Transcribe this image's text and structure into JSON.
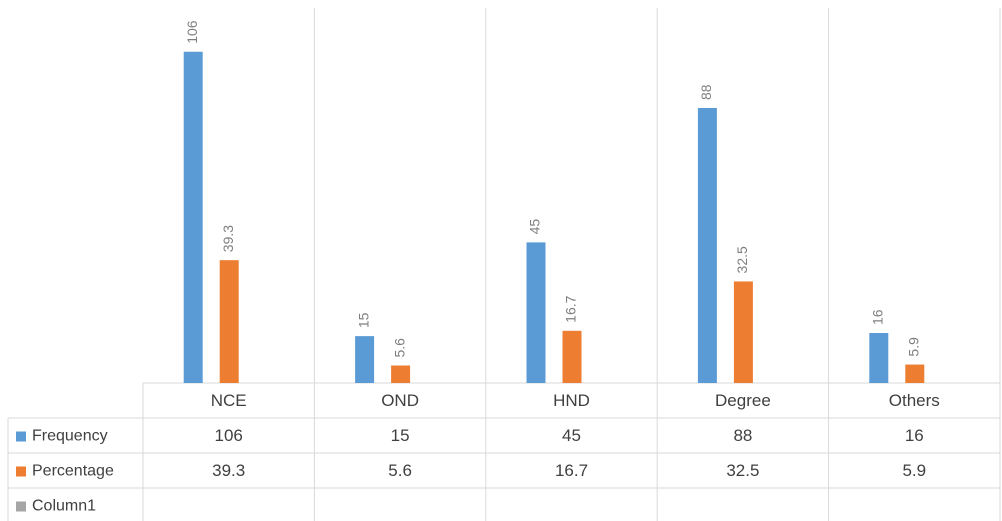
{
  "chart_data": {
    "type": "bar",
    "categories": [
      "NCE",
      "OND",
      "HND",
      "Degree",
      "Others"
    ],
    "series": [
      {
        "name": "Frequency",
        "color": "#5b9bd5",
        "values": [
          106,
          15,
          45,
          88,
          16
        ]
      },
      {
        "name": "Percentage",
        "color": "#ed7d31",
        "values": [
          39.3,
          5.6,
          16.7,
          32.5,
          5.9
        ]
      },
      {
        "name": "Column1",
        "color": "#a5a5a5",
        "values": [
          null,
          null,
          null,
          null,
          null
        ]
      }
    ],
    "ylim": [
      0,
      120
    ]
  }
}
